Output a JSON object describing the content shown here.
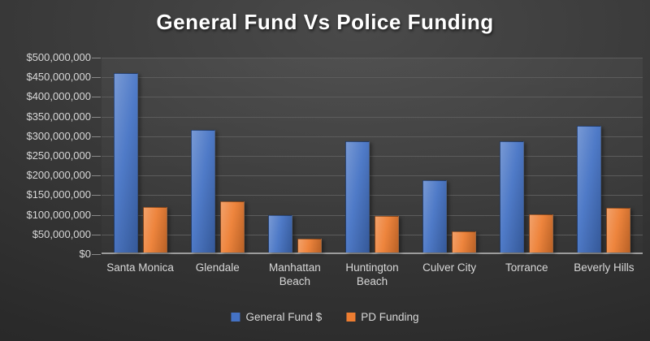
{
  "title": "General Fund Vs Police Funding",
  "colors": {
    "general_fund": "#4472C4",
    "pd_funding": "#ED7D31",
    "gridline": "#5c5c5c",
    "axis_line": "#9c9c9c",
    "label_text": "#d8d8d8",
    "title_text": "#ffffff"
  },
  "chart_data": {
    "type": "bar",
    "title": "General Fund Vs Police Funding",
    "categories": [
      "Santa Monica",
      "Glendale",
      "Manhattan Beach",
      "Huntington Beach",
      "Culver City",
      "Torrance",
      "Beverly Hills"
    ],
    "series": [
      {
        "name": "General Fund $",
        "color": "#4472C4",
        "values": [
          457000000,
          311000000,
          96000000,
          283000000,
          184000000,
          284000000,
          323000000
        ]
      },
      {
        "name": "PD Funding",
        "color": "#ED7D31",
        "values": [
          116000000,
          130000000,
          36000000,
          92000000,
          54000000,
          98000000,
          113000000
        ]
      }
    ],
    "xlabel": "",
    "ylabel": "",
    "ylim": [
      0,
      500000000
    ],
    "ytick_step": 50000000,
    "ytick_labels": [
      "$0",
      "$50,000,000",
      "$100,000,000",
      "$150,000,000",
      "$200,000,000",
      "$250,000,000",
      "$300,000,000",
      "$350,000,000",
      "$400,000,000",
      "$450,000,000",
      "$500,000,000"
    ],
    "grid": true,
    "legend_position": "bottom-center"
  },
  "legend": {
    "items": [
      {
        "label": "General Fund $",
        "color": "#4472C4"
      },
      {
        "label": "PD Funding",
        "color": "#ED7D31"
      }
    ]
  }
}
